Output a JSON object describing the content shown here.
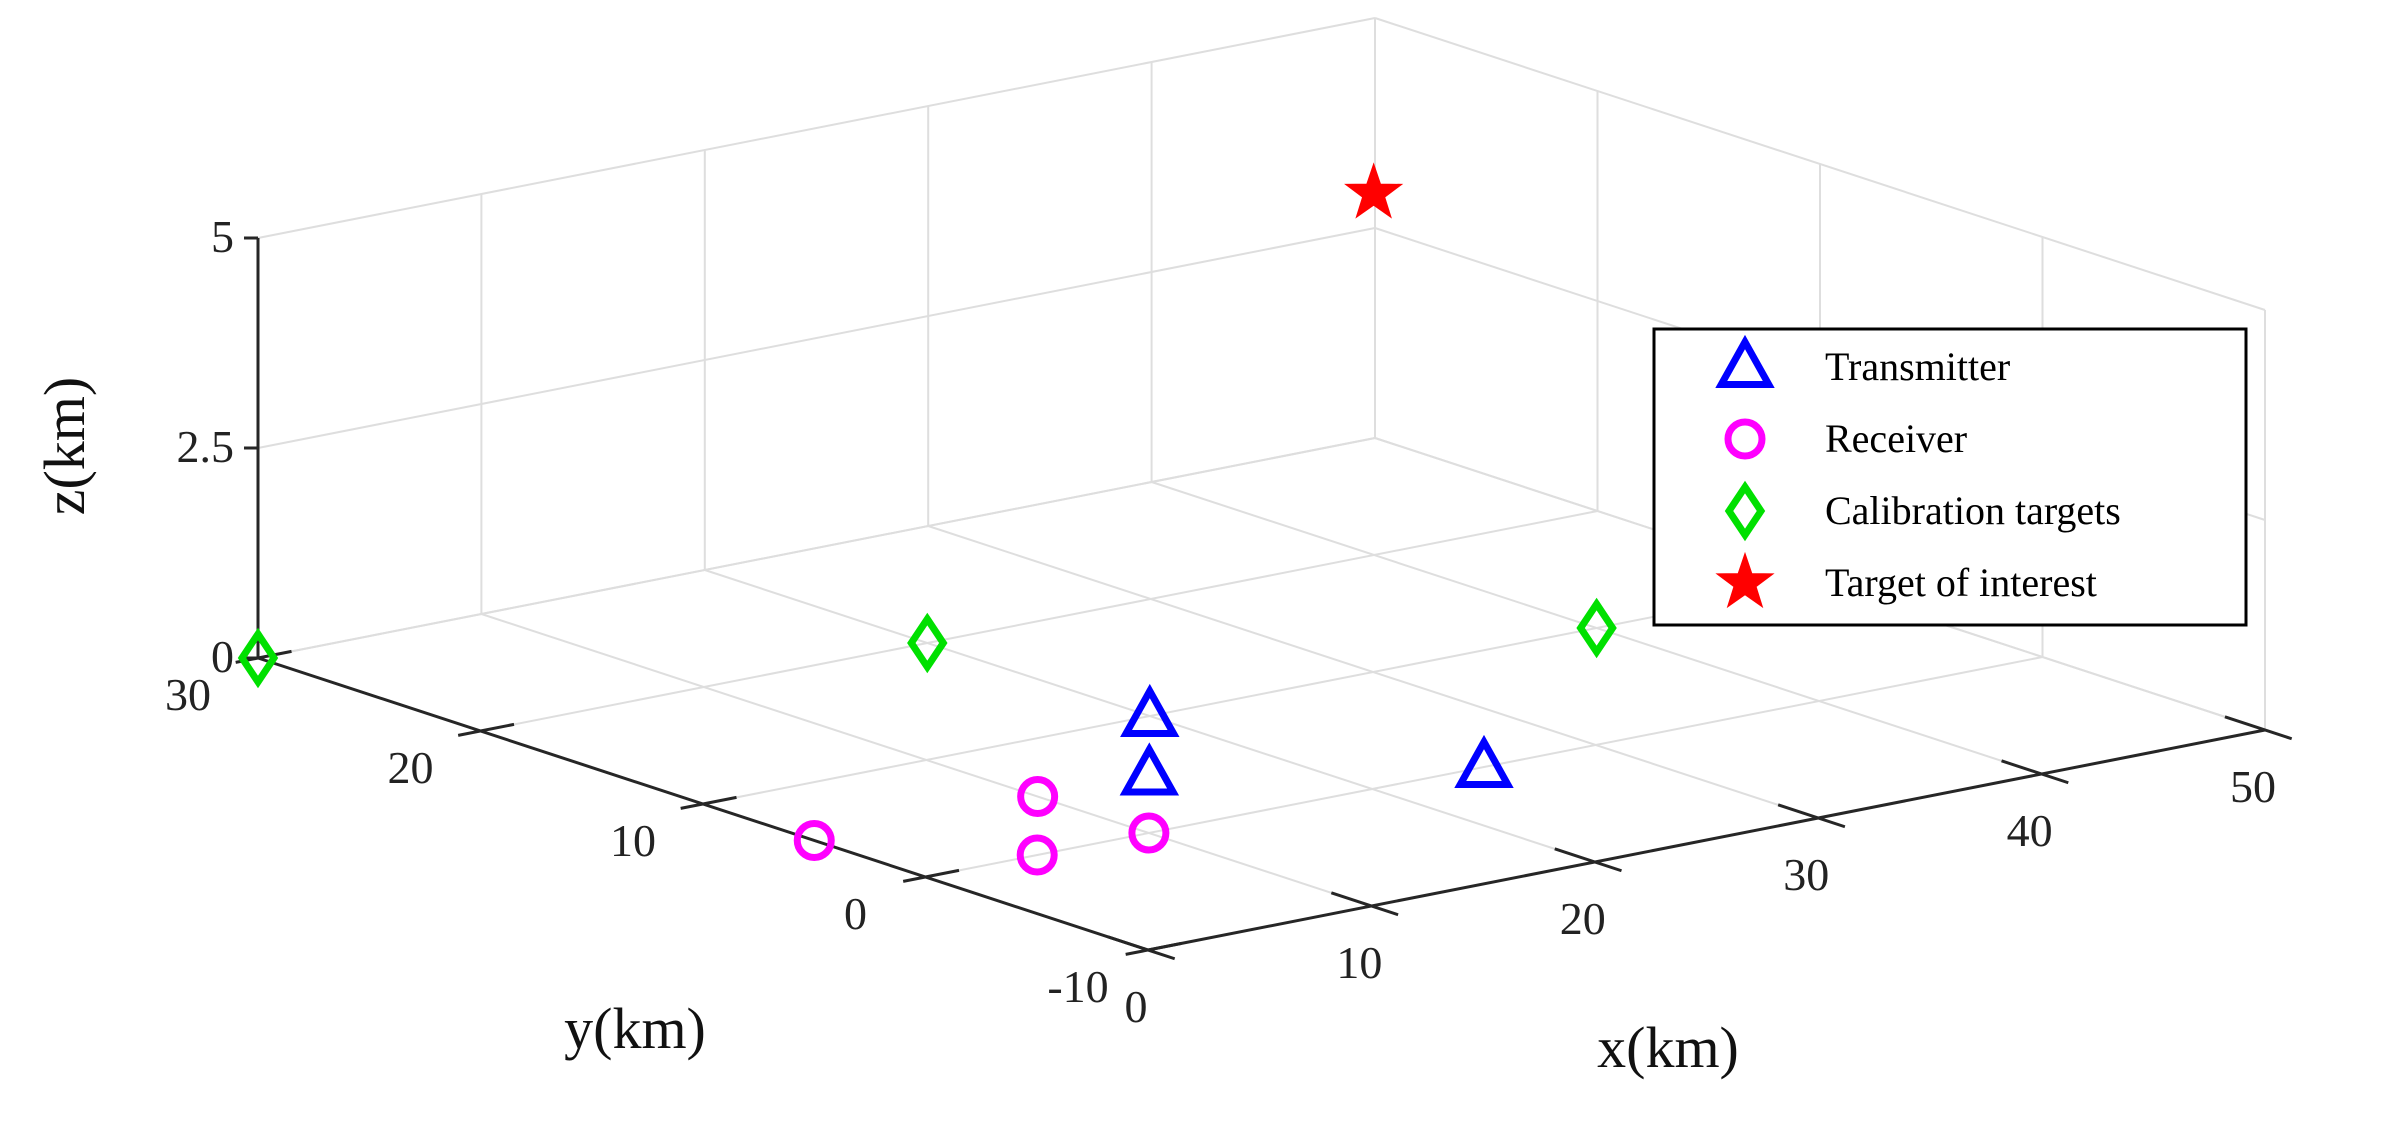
{
  "chart_data": {
    "type": "scatter",
    "title": "",
    "xlabel": "x(km)",
    "ylabel": "y(km)",
    "zlabel": "z(km)",
    "xlim": [
      0,
      50
    ],
    "ylim": [
      -10,
      30
    ],
    "zlim": [
      0,
      5
    ],
    "xticks": [
      "0",
      "10",
      "20",
      "30",
      "40",
      "50"
    ],
    "yticks": [
      "-10",
      "0",
      "10",
      "20",
      "30"
    ],
    "zticks": [
      "0",
      "2.5",
      "5"
    ],
    "grid": true,
    "legend_position": "right",
    "series": [
      {
        "name": "Transmitter",
        "marker": "triangle",
        "color": "#0000ff",
        "points": [
          [
            15,
            5,
            0
          ],
          [
            25,
            0,
            0
          ],
          [
            20,
            10,
            0
          ]
        ]
      },
      {
        "name": "Receiver",
        "marker": "circle",
        "color": "#ff00ff",
        "points": [
          [
            5,
            0,
            0
          ],
          [
            10,
            0,
            0
          ],
          [
            0,
            5,
            0
          ],
          [
            10,
            5,
            0
          ]
        ]
      },
      {
        "name": "Calibration targets",
        "marker": "diamond",
        "color": "#00e000",
        "points": [
          [
            0,
            30,
            0
          ],
          [
            20,
            20,
            0
          ],
          [
            40,
            10,
            0
          ]
        ]
      },
      {
        "name": "Target of interest",
        "marker": "star",
        "color": "#ff0000",
        "points": [
          [
            35,
            15,
            5
          ]
        ]
      }
    ]
  }
}
